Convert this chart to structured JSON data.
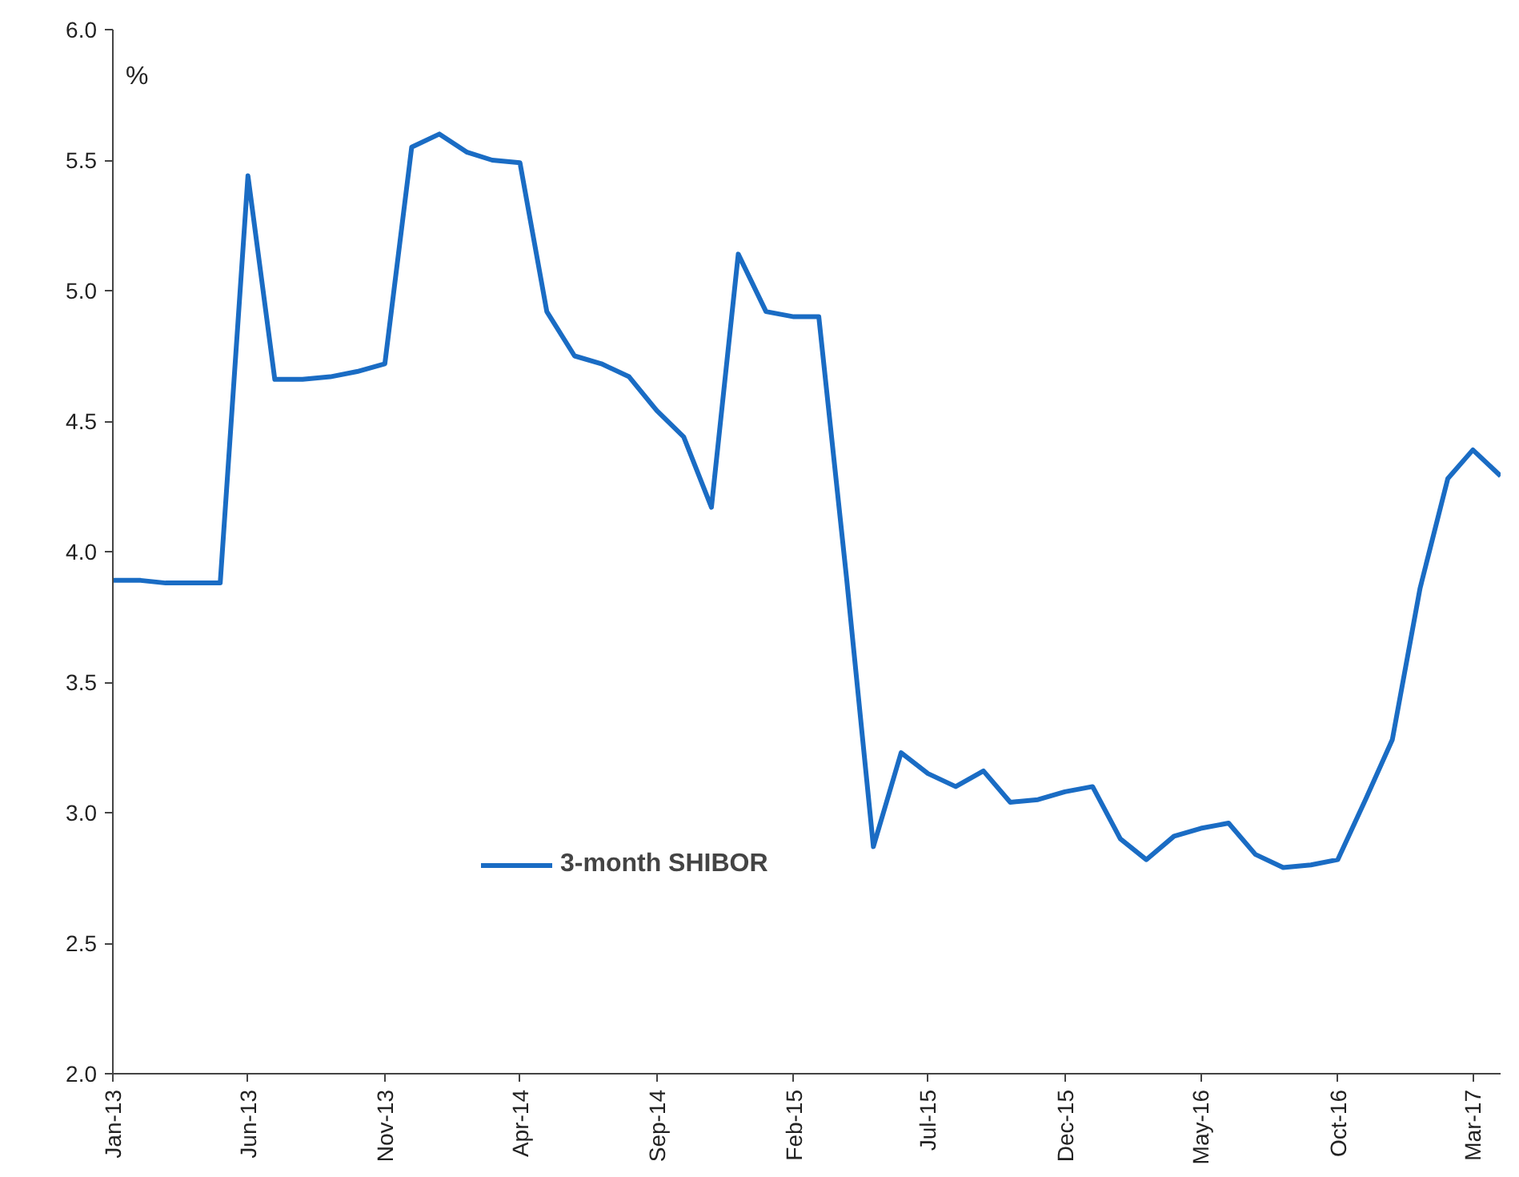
{
  "chart_data": {
    "type": "line",
    "ylabel": "%",
    "x": [
      "2013-01",
      "2013-02",
      "2013-03",
      "2013-04",
      "2013-05",
      "2013-06",
      "2013-07",
      "2013-08",
      "2013-09",
      "2013-10",
      "2013-11",
      "2013-12",
      "2014-01",
      "2014-02",
      "2014-03",
      "2014-04",
      "2014-05",
      "2014-06",
      "2014-07",
      "2014-08",
      "2014-09",
      "2014-10",
      "2014-11",
      "2014-12",
      "2015-01",
      "2015-02",
      "2015-03",
      "2015-04",
      "2015-05",
      "2015-06",
      "2015-07",
      "2015-08",
      "2015-09",
      "2015-10",
      "2015-11",
      "2015-12",
      "2016-01",
      "2016-02",
      "2016-03",
      "2016-04",
      "2016-05",
      "2016-06",
      "2016-07",
      "2016-08",
      "2016-09",
      "2016-10",
      "2016-11",
      "2016-12",
      "2017-01",
      "2017-02",
      "2017-03",
      "2017-04"
    ],
    "series": [
      {
        "name": "3-month SHIBOR",
        "color": "#1a6cc4",
        "values": [
          3.89,
          3.89,
          3.88,
          3.88,
          3.88,
          5.44,
          4.66,
          4.66,
          4.67,
          4.69,
          4.72,
          5.55,
          5.6,
          5.53,
          5.5,
          5.49,
          4.92,
          4.75,
          4.72,
          4.67,
          4.54,
          4.44,
          4.17,
          5.14,
          4.92,
          4.9,
          4.9,
          3.9,
          2.87,
          3.23,
          3.15,
          3.1,
          3.16,
          3.04,
          3.05,
          3.08,
          3.1,
          2.9,
          2.82,
          2.91,
          2.94,
          2.96,
          2.84,
          2.79,
          2.8,
          2.82,
          3.05,
          3.28,
          3.86,
          4.28,
          4.39,
          4.29
        ]
      }
    ],
    "xlim": [
      "2013-01",
      "2017-04"
    ],
    "xticks": [
      {
        "value": "2013-01",
        "label": "Jan-13"
      },
      {
        "value": "2013-06",
        "label": "Jun-13"
      },
      {
        "value": "2013-11",
        "label": "Nov-13"
      },
      {
        "value": "2014-04",
        "label": "Apr-14"
      },
      {
        "value": "2014-09",
        "label": "Sep-14"
      },
      {
        "value": "2015-02",
        "label": "Feb-15"
      },
      {
        "value": "2015-07",
        "label": "Jul-15"
      },
      {
        "value": "2015-12",
        "label": "Dec-15"
      },
      {
        "value": "2016-05",
        "label": "May-16"
      },
      {
        "value": "2016-10",
        "label": "Oct-16"
      },
      {
        "value": "2017-03",
        "label": "Mar-17"
      }
    ],
    "ylim": [
      2.0,
      6.0
    ],
    "yticks": [
      {
        "value": 2.0,
        "label": "2.0"
      },
      {
        "value": 2.5,
        "label": "2.5"
      },
      {
        "value": 3.0,
        "label": "3.0"
      },
      {
        "value": 3.5,
        "label": "3.5"
      },
      {
        "value": 4.0,
        "label": "4.0"
      },
      {
        "value": 4.5,
        "label": "4.5"
      },
      {
        "value": 5.0,
        "label": "5.0"
      },
      {
        "value": 5.5,
        "label": "5.5"
      },
      {
        "value": 6.0,
        "label": "6.0"
      }
    ],
    "grid": false,
    "legend": "bottom",
    "line_style": "solid"
  }
}
